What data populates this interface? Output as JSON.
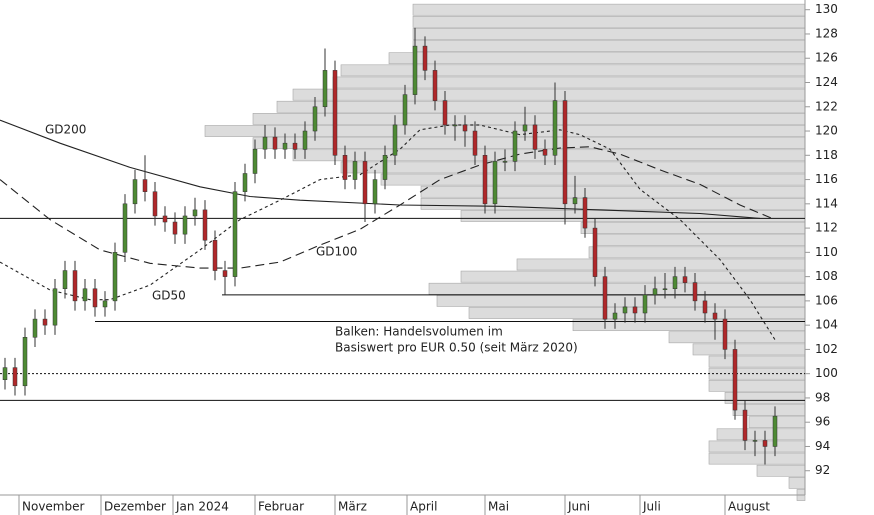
{
  "chart_data": {
    "type": "candlestick",
    "x": [
      0,
      1,
      2,
      3,
      4,
      5,
      6,
      7,
      8,
      9,
      10,
      11,
      12,
      13,
      14,
      15,
      16,
      17,
      18,
      19,
      20,
      21,
      22,
      23,
      24,
      25,
      26,
      27,
      28,
      29,
      30,
      31,
      32,
      33,
      34,
      35,
      36,
      37,
      38,
      39,
      40,
      41,
      42,
      43,
      44,
      45,
      46,
      47,
      48,
      49,
      50,
      51,
      52,
      53,
      54,
      55,
      56,
      57,
      58,
      59,
      60,
      61,
      62,
      63,
      64,
      65,
      66,
      67,
      68,
      69,
      70,
      71,
      72,
      73,
      74,
      75,
      76,
      77
    ],
    "open": [
      99.5,
      100.5,
      99,
      103,
      104.5,
      104,
      107,
      108.5,
      106,
      107,
      105.5,
      106,
      110,
      114,
      116,
      115,
      113,
      112.5,
      111.5,
      113,
      113.5,
      111,
      108.5,
      108,
      115,
      116.5,
      118.5,
      119.5,
      118.5,
      119,
      118.5,
      120,
      122,
      125,
      118,
      116,
      117.5,
      114,
      116,
      118,
      120.5,
      123,
      127,
      125,
      122.5,
      120.5,
      120.5,
      120,
      118,
      114,
      117.5,
      117.5,
      120,
      120.5,
      118.5,
      118,
      122.5,
      114,
      114.5,
      112,
      108,
      104.5,
      105,
      105.5,
      105,
      106.5,
      107,
      107,
      108,
      107.5,
      106,
      105,
      104.5,
      102,
      97,
      94.5,
      94.5,
      94
    ],
    "high": [
      101.3,
      101.3,
      103.8,
      105.3,
      105.3,
      107.8,
      109.3,
      109.3,
      107.8,
      107.8,
      106.8,
      110.8,
      114.8,
      116.8,
      118,
      115.8,
      113.8,
      113.3,
      113.8,
      114.5,
      114.3,
      111.8,
      109.3,
      115.8,
      117.3,
      119.3,
      120.5,
      120.3,
      119.8,
      119.8,
      120.8,
      122.8,
      126.8,
      125.8,
      118.8,
      118.3,
      118.3,
      116.8,
      118.8,
      121.3,
      123.8,
      128.5,
      127.8,
      125.8,
      123.3,
      121.3,
      121.3,
      120.8,
      118.8,
      118.3,
      118.5,
      120.8,
      122,
      121.3,
      119.3,
      124,
      123.3,
      116.3,
      115.3,
      112.8,
      108.8,
      105.8,
      106.3,
      106.3,
      107.3,
      108,
      108.3,
      108.8,
      108.8,
      108.3,
      106.8,
      105.8,
      105.3,
      102.8,
      97.8,
      95.3,
      95.3,
      97.3
    ],
    "low": [
      98.7,
      98.2,
      98.2,
      102.2,
      103.2,
      103.2,
      106.2,
      105.2,
      105.2,
      104.7,
      104.7,
      105.2,
      109.2,
      113.2,
      114.2,
      112.2,
      111.7,
      110.7,
      110.7,
      112.2,
      110.2,
      107.7,
      106.5,
      107.2,
      114.2,
      115.7,
      117.7,
      117.7,
      117.7,
      117.7,
      117.7,
      119.2,
      121.2,
      117.2,
      115.2,
      115.2,
      112.5,
      113.2,
      115.2,
      117.2,
      119.7,
      122.2,
      124.2,
      121.7,
      119.7,
      119.2,
      118.7,
      117.2,
      113.2,
      113.2,
      116.7,
      116.7,
      119.2,
      117.7,
      117.2,
      117.2,
      112.3,
      113.2,
      111.2,
      107.2,
      103.7,
      103.7,
      104.2,
      104.2,
      104.2,
      105.7,
      106.2,
      106.2,
      106.7,
      105.2,
      104.2,
      102.8,
      101.2,
      96.2,
      93.7,
      93.2,
      92.5,
      93.2
    ],
    "close": [
      100.5,
      99,
      103,
      104.5,
      104,
      107,
      108.5,
      106,
      107,
      105.5,
      106,
      110,
      114,
      116,
      115,
      113,
      112.5,
      111.5,
      113,
      113.5,
      111,
      108.5,
      108,
      115,
      116.5,
      118.5,
      119.5,
      118.5,
      119,
      118.5,
      120,
      122,
      125,
      118,
      116,
      117.5,
      114,
      116,
      118,
      120.5,
      123,
      127,
      125,
      122.5,
      120.5,
      120.5,
      120,
      118,
      114,
      117.5,
      117.5,
      120,
      120.5,
      118.5,
      118,
      122.5,
      114,
      114.5,
      112,
      108,
      104.5,
      105,
      105.5,
      105,
      106.5,
      107,
      107,
      108,
      107.5,
      106,
      105,
      104.5,
      102,
      97,
      94.5,
      94.5,
      94,
      96.5
    ],
    "up_color": "#4e8a34",
    "down_color": "#b0282a",
    "series": [
      {
        "name": "GD200",
        "color": "#222222",
        "dash": "solid",
        "x": [
          -0.5,
          5.5,
          12.5,
          19.5,
          24.5,
          29.5,
          39.5,
          49.5,
          59.5,
          69.5,
          75.5
        ],
        "values": [
          120.9,
          119,
          117,
          115.4,
          114.6,
          114.3,
          113.9,
          113.8,
          113.5,
          113.2,
          112.8
        ]
      },
      {
        "name": "GD100",
        "color": "#222222",
        "dash": "long",
        "x": [
          -0.5,
          4.5,
          9.5,
          14.5,
          19.5,
          23.5,
          27.5,
          31.5,
          35.5,
          39.5,
          43.5,
          47.5,
          51.5,
          55.5,
          58.5,
          61.5,
          65.5,
          69.5,
          73.5,
          77
        ],
        "values": [
          116,
          112.7,
          110.2,
          109.1,
          108.7,
          108.7,
          109.2,
          110.6,
          111.9,
          113.9,
          116,
          117.2,
          118.1,
          118.6,
          118.7,
          118.1,
          116.8,
          115.6,
          113.9,
          112.7
        ]
      },
      {
        "name": "GD50",
        "color": "#222222",
        "dash": "short",
        "x": [
          -0.5,
          4.5,
          8.5,
          10.5,
          14.5,
          19.5,
          23.5,
          27.5,
          31.5,
          35.5,
          39.5,
          41.5,
          44.5,
          47.5,
          51.5,
          55.5,
          57.5,
          60.5,
          63.5,
          67.5,
          71.5,
          74.5,
          77
        ],
        "values": [
          109.2,
          106.9,
          106.1,
          106.1,
          107.3,
          110.2,
          112.7,
          114.3,
          116,
          116.4,
          118.5,
          120.1,
          120.5,
          120.5,
          119.7,
          120.1,
          119.7,
          118.5,
          115.2,
          112.7,
          109.4,
          106.1,
          102.8
        ]
      }
    ],
    "levels": [
      {
        "y": 112.8,
        "from": -0.5,
        "style": "solid"
      },
      {
        "y": 106.5,
        "from": 21.7,
        "style": "solid"
      },
      {
        "y": 104.3,
        "from": 9,
        "style": "solid"
      },
      {
        "y": 100,
        "from": -0.5,
        "style": "dotted"
      },
      {
        "y": 97.8,
        "from": -0.5,
        "style": "solid"
      }
    ],
    "volume_profile": {
      "color": "#dcdcdc",
      "prices": [
        90,
        91,
        92,
        93,
        94,
        95,
        96,
        97,
        98,
        99,
        100,
        101,
        102,
        103,
        104,
        105,
        106,
        107,
        108,
        109,
        110,
        111,
        112,
        113,
        114,
        115,
        116,
        117,
        118,
        119,
        120,
        121,
        122,
        123,
        124,
        125,
        126,
        127,
        128,
        129,
        130
      ],
      "values": [
        1,
        2,
        6,
        12,
        12,
        11,
        7,
        9,
        10,
        12,
        12,
        12,
        14,
        17,
        29,
        42,
        46,
        47,
        43,
        36,
        27,
        26,
        28,
        43,
        48,
        48,
        53,
        58,
        64,
        69,
        75,
        69,
        66,
        64,
        59,
        58,
        52,
        49,
        49,
        49,
        49
      ]
    },
    "annotation": [
      "Balken: Handelsvolumen im",
      "Basiswert pro EUR 0.50 (seit März 2020)"
    ],
    "xlim": [
      -0.5,
      80
    ],
    "ylim": [
      90,
      130.8
    ],
    "xticks": [
      {
        "value": 1.4,
        "label": "November"
      },
      {
        "value": 9.6,
        "label": "Dezember"
      },
      {
        "value": 16.8,
        "label": "Jan 2024"
      },
      {
        "value": 25,
        "label": "Februar"
      },
      {
        "value": 33,
        "label": "März"
      },
      {
        "value": 40.2,
        "label": "April"
      },
      {
        "value": 48,
        "label": "Mai"
      },
      {
        "value": 56,
        "label": "Juni"
      },
      {
        "value": 63.5,
        "label": "Juli"
      },
      {
        "value": 72,
        "label": "August"
      }
    ],
    "yticks": [
      92,
      94,
      96,
      98,
      100,
      102,
      104,
      106,
      108,
      110,
      112,
      114,
      116,
      118,
      120,
      122,
      124,
      126,
      128,
      130
    ]
  }
}
